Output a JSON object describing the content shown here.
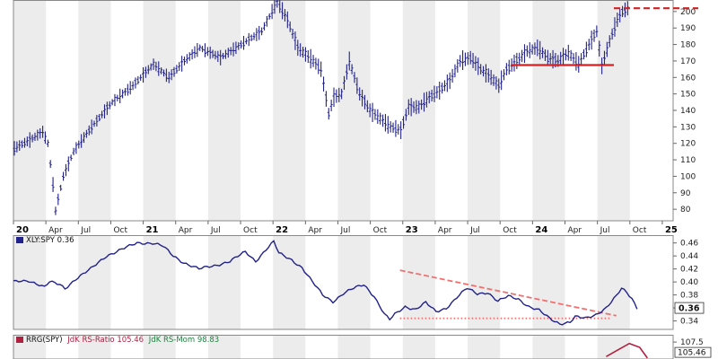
{
  "chart_data": [
    {
      "type": "ohlc",
      "ylim": [
        73,
        207
      ],
      "y_ticks": [
        80,
        90,
        100,
        110,
        120,
        130,
        140,
        150,
        160,
        170,
        180,
        190,
        200
      ],
      "x_labels": [
        {
          "label": "20",
          "year": true
        },
        {
          "label": "Apr"
        },
        {
          "label": "Jul"
        },
        {
          "label": "Oct"
        },
        {
          "label": "21",
          "year": true
        },
        {
          "label": "Apr"
        },
        {
          "label": "Jul"
        },
        {
          "label": "Oct"
        },
        {
          "label": "22",
          "year": true
        },
        {
          "label": "Apr"
        },
        {
          "label": "Jul"
        },
        {
          "label": "Oct"
        },
        {
          "label": "23",
          "year": true
        },
        {
          "label": "Apr"
        },
        {
          "label": "Jul"
        },
        {
          "label": "Oct"
        },
        {
          "label": "24",
          "year": true
        },
        {
          "label": "Apr"
        },
        {
          "label": "Jul"
        },
        {
          "label": "Oct"
        },
        {
          "label": "25",
          "year": true
        }
      ],
      "anchors": [
        [
          0,
          117
        ],
        [
          6,
          122
        ],
        [
          11,
          127
        ],
        [
          13,
          120
        ],
        [
          15,
          95
        ],
        [
          16,
          79
        ],
        [
          19,
          100
        ],
        [
          23,
          115
        ],
        [
          30,
          130
        ],
        [
          38,
          145
        ],
        [
          46,
          155
        ],
        [
          54,
          168
        ],
        [
          60,
          160
        ],
        [
          66,
          170
        ],
        [
          72,
          178
        ],
        [
          80,
          172
        ],
        [
          88,
          180
        ],
        [
          96,
          188
        ],
        [
          102,
          206
        ],
        [
          106,
          195
        ],
        [
          110,
          178
        ],
        [
          116,
          170
        ],
        [
          119,
          165
        ],
        [
          122,
          138
        ],
        [
          124,
          148
        ],
        [
          127,
          150
        ],
        [
          130,
          170
        ],
        [
          134,
          150
        ],
        [
          138,
          140
        ],
        [
          142,
          135
        ],
        [
          146,
          130
        ],
        [
          150,
          128
        ],
        [
          153,
          142
        ],
        [
          157,
          142
        ],
        [
          161,
          148
        ],
        [
          165,
          152
        ],
        [
          169,
          158
        ],
        [
          173,
          170
        ],
        [
          177,
          172
        ],
        [
          181,
          165
        ],
        [
          185,
          160
        ],
        [
          188,
          155
        ],
        [
          191,
          165
        ],
        [
          195,
          170
        ],
        [
          199,
          176
        ],
        [
          203,
          178
        ],
        [
          207,
          172
        ],
        [
          211,
          170
        ],
        [
          215,
          175
        ],
        [
          219,
          168
        ],
        [
          223,
          180
        ],
        [
          226,
          188
        ],
        [
          228,
          167
        ],
        [
          231,
          182
        ],
        [
          234,
          195
        ],
        [
          236,
          200
        ],
        [
          238,
          202
        ]
      ],
      "horizontal_lines": [
        {
          "y": 167.5,
          "from": 193,
          "to": 233,
          "style": "solid"
        },
        {
          "y": 202,
          "from": 233,
          "to": 256,
          "style": "dashed"
        }
      ],
      "color": "#22228a",
      "level_color": "#d42020"
    },
    {
      "type": "line",
      "series": [
        {
          "name": "XLY:SPY",
          "last_value": 0.36
        }
      ],
      "ylim": [
        0.327,
        0.472
      ],
      "y_ticks": [
        0.34,
        0.36,
        0.38,
        0.4,
        0.42,
        0.44,
        0.46
      ],
      "last_value_label": "0.36",
      "anchors": [
        [
          0,
          0.4
        ],
        [
          6,
          0.402
        ],
        [
          10,
          0.396
        ],
        [
          12,
          0.392
        ],
        [
          14,
          0.4
        ],
        [
          18,
          0.396
        ],
        [
          20,
          0.39
        ],
        [
          24,
          0.404
        ],
        [
          30,
          0.42
        ],
        [
          36,
          0.44
        ],
        [
          42,
          0.45
        ],
        [
          48,
          0.46
        ],
        [
          54,
          0.46
        ],
        [
          58,
          0.455
        ],
        [
          62,
          0.44
        ],
        [
          66,
          0.43
        ],
        [
          72,
          0.42
        ],
        [
          78,
          0.425
        ],
        [
          84,
          0.432
        ],
        [
          90,
          0.446
        ],
        [
          94,
          0.432
        ],
        [
          98,
          0.45
        ],
        [
          101,
          0.462
        ],
        [
          103,
          0.444
        ],
        [
          108,
          0.434
        ],
        [
          112,
          0.422
        ],
        [
          116,
          0.4
        ],
        [
          120,
          0.38
        ],
        [
          124,
          0.37
        ],
        [
          128,
          0.382
        ],
        [
          132,
          0.39
        ],
        [
          136,
          0.396
        ],
        [
          140,
          0.378
        ],
        [
          144,
          0.35
        ],
        [
          146,
          0.342
        ],
        [
          148,
          0.35
        ],
        [
          152,
          0.362
        ],
        [
          156,
          0.358
        ],
        [
          160,
          0.368
        ],
        [
          164,
          0.354
        ],
        [
          168,
          0.36
        ],
        [
          172,
          0.376
        ],
        [
          176,
          0.39
        ],
        [
          180,
          0.382
        ],
        [
          184,
          0.384
        ],
        [
          188,
          0.37
        ],
        [
          192,
          0.378
        ],
        [
          196,
          0.374
        ],
        [
          200,
          0.362
        ],
        [
          204,
          0.356
        ],
        [
          208,
          0.344
        ],
        [
          212,
          0.336
        ],
        [
          216,
          0.338
        ],
        [
          218,
          0.346
        ],
        [
          222,
          0.344
        ],
        [
          226,
          0.35
        ],
        [
          230,
          0.36
        ],
        [
          234,
          0.378
        ],
        [
          236,
          0.39
        ],
        [
          238,
          0.384
        ],
        [
          240,
          0.375
        ],
        [
          242,
          0.36
        ]
      ],
      "trendlines": [
        {
          "from": [
            150,
            0.418
          ],
          "to": [
            234,
            0.348
          ],
          "style": "dashed"
        },
        {
          "from": [
            150,
            0.344
          ],
          "to": [
            232,
            0.344
          ],
          "style": "dotted"
        }
      ],
      "color": "#22228a",
      "trend_color": "#f07070"
    },
    {
      "type": "line",
      "series": [
        {
          "name": "JdK RS-Ratio",
          "last_value": 105.46,
          "color": "#b02040"
        },
        {
          "name": "JdK RS-Mom",
          "last_value": 98.83,
          "color": "#208040"
        }
      ],
      "ylim": [
        104,
        109
      ],
      "y_ticks": [
        107.5
      ],
      "last_value_label": "105.46",
      "anchors": [
        [
          230,
          104.5
        ],
        [
          235,
          106
        ],
        [
          239,
          107.2
        ],
        [
          243,
          106.4
        ],
        [
          246,
          104.2
        ]
      ]
    }
  ],
  "panel_labels": {
    "p2": "XLY:SPY 0.36",
    "p3_prefix": "RRG(SPY)",
    "p3_ratio": "JdK RS-Ratio 105.46",
    "p3_mom": "JdK RS-Mom 98.83"
  }
}
